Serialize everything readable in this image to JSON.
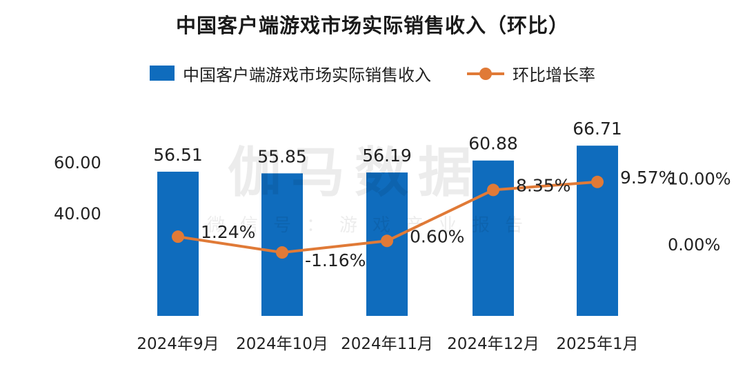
{
  "title": "中国客户端游戏市场实际销售收入（环比）",
  "watermark": {
    "main": "伽马数据",
    "sub": "微信号：游戏产业报告"
  },
  "legend": {
    "bar_label": "中国客户端游戏市场实际销售收入",
    "line_label": "环比增长率"
  },
  "colors": {
    "bar": "#0f6cbd",
    "line": "#e07a37"
  },
  "chart_data": {
    "type": "bar",
    "title": "中国客户端游戏市场实际销售收入（环比）",
    "categories": [
      "2024年9月",
      "2024年10月",
      "2024年11月",
      "2024年12月",
      "2025年1月"
    ],
    "series": [
      {
        "name": "中国客户端游戏市场实际销售收入",
        "type": "bar",
        "axis": "left",
        "values": [
          56.51,
          55.85,
          56.19,
          60.88,
          66.71
        ],
        "labels": [
          "56.51",
          "55.85",
          "56.19",
          "60.88",
          "66.71"
        ]
      },
      {
        "name": "环比增长率",
        "type": "line",
        "axis": "right",
        "values": [
          1.24,
          -1.16,
          0.6,
          8.35,
          9.57
        ],
        "labels": [
          "1.24%",
          "-1.16%",
          "0.60%",
          "8.35%",
          "9.57%"
        ]
      }
    ],
    "left_axis": {
      "ticks": [
        "60.00",
        "40.00"
      ],
      "tick_values": [
        60,
        40
      ]
    },
    "right_axis": {
      "ticks": [
        "10.00%",
        "0.00%"
      ],
      "tick_values": [
        10,
        0
      ]
    },
    "grid": false,
    "legend_position": "top-center"
  }
}
